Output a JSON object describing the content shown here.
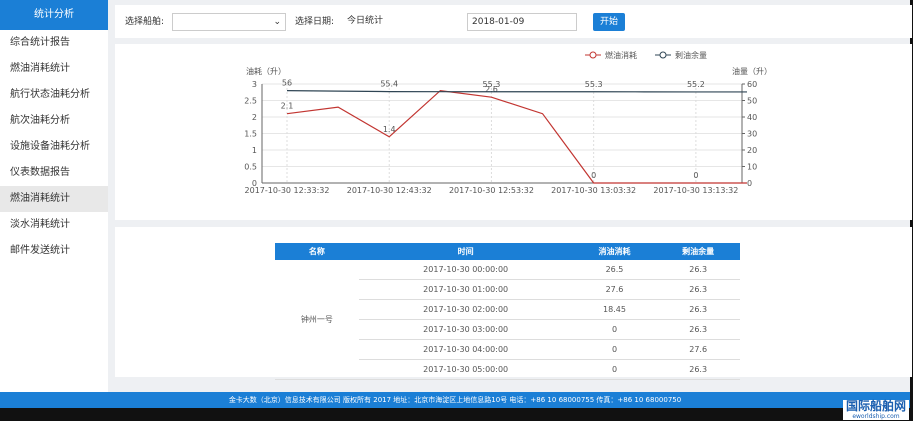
{
  "sidebar": {
    "title": "统计分析",
    "active": 6,
    "items": [
      "综合统计报告",
      "燃油消耗统计",
      "航行状态油耗分析",
      "航次油耗分析",
      "设施设备油耗分析",
      "仪表数据报告",
      "燃油消耗统计",
      "淡水消耗统计",
      "邮件发送统计"
    ]
  },
  "filters": {
    "ship_label": "选择船舶:",
    "date_label": "选择日期:",
    "date_mode": "今日统计",
    "date": "2018-01-09",
    "button": "开始"
  },
  "chart_data": {
    "type": "line",
    "y_label": "油耗（升）",
    "y2_label": "油量（升）",
    "categories": [
      "2017-10-30 12:33:32",
      null,
      "2017-10-30 12:43:32",
      null,
      "2017-10-30 12:53:32",
      null,
      "2017-10-30 13:03:32",
      null,
      "2017-10-30 13:13:32",
      null
    ],
    "ylim": [
      0,
      3
    ],
    "yticks": [
      0,
      0.5,
      1,
      1.5,
      2,
      2.5,
      3
    ],
    "y2lim": [
      0,
      60
    ],
    "y2ticks": [
      0,
      10,
      20,
      30,
      40,
      50,
      60
    ],
    "grid": true,
    "label_interval": 2,
    "series": [
      {
        "name": "燃油消耗",
        "color": "#c23531",
        "values": [
          2.1,
          2.3,
          1.4,
          2.8,
          2.6,
          2.1,
          0,
          0,
          0,
          0
        ]
      },
      {
        "name": "剩油余量",
        "color": "#2f4554",
        "axis": "y2",
        "values": [
          56,
          55.7,
          55.4,
          55.35,
          55.3,
          55.3,
          55.3,
          55.25,
          55.2,
          55.2
        ]
      }
    ]
  },
  "table": {
    "headers": [
      "名称",
      "时间",
      "消油消耗",
      "剩油余量"
    ],
    "name": "钟州一号",
    "rows": [
      [
        "2017-10-30 00:00:00",
        26.5,
        26.3
      ],
      [
        "2017-10-30 01:00:00",
        27.6,
        26.3
      ],
      [
        "2017-10-30 02:00:00",
        18.45,
        26.3
      ],
      [
        "2017-10-30 03:00:00",
        0,
        26.3
      ],
      [
        "2017-10-30 04:00:00",
        0,
        27.6
      ],
      [
        "2017-10-30 05:00:00",
        0,
        26.3
      ]
    ]
  },
  "footer": "金卡大数（北京）信息技术有限公司 版权所有 2017 地址：北京市海淀区上地信息路10号 电话：+86 10 68000755 传真：+86 10 68000750",
  "watermark": {
    "title": "国际船舶网",
    "url": "eworldship.com"
  }
}
